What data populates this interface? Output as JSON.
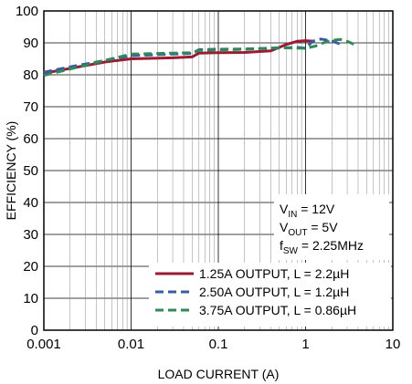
{
  "chart_data": {
    "type": "line",
    "xscale": "log",
    "xlim": [
      0.001,
      10
    ],
    "ylim": [
      0,
      100
    ],
    "xticks": [
      0.001,
      0.01,
      0.1,
      1,
      10
    ],
    "xtick_labels": [
      "0.001",
      "0.01",
      "0.1",
      "1",
      "10"
    ],
    "yticks": [
      0,
      10,
      20,
      30,
      40,
      50,
      60,
      70,
      80,
      90,
      100
    ],
    "ytick_labels": [
      "0",
      "10",
      "20",
      "30",
      "40",
      "50",
      "60",
      "70",
      "80",
      "90",
      "100"
    ],
    "xlabel": "LOAD CURRENT (A)",
    "ylabel": "EFFICIENCY (%)",
    "grid": true,
    "annotations": [
      {
        "main": "V",
        "sub": "IN",
        "rest": " = 12V"
      },
      {
        "main": "V",
        "sub": "OUT",
        "rest": " = 5V"
      },
      {
        "main": "f",
        "sub": "SW",
        "rest": " = 2.25MHz"
      }
    ],
    "legend_position": "bottom-right",
    "series": [
      {
        "name": "1.25A OUTPUT, L = 2.2µH",
        "color": "#9b1b30",
        "style": "solid",
        "x": [
          0.001,
          0.002,
          0.005,
          0.01,
          0.03,
          0.05,
          0.06,
          0.1,
          0.2,
          0.4,
          0.6,
          0.8,
          1.0,
          1.25
        ],
        "y": [
          80.5,
          82.0,
          84.0,
          85.0,
          85.3,
          85.6,
          86.8,
          86.9,
          87.0,
          87.5,
          89.5,
          90.5,
          90.7,
          90.5
        ]
      },
      {
        "name": "2.50A OUTPUT, L = 1.2µH",
        "color": "#3a5aa6",
        "style": "dash",
        "x": [
          0.001,
          0.002,
          0.005,
          0.01,
          0.03,
          0.05,
          0.06,
          0.1,
          0.2,
          0.5,
          0.8,
          1.0,
          1.2,
          1.5,
          2.0,
          2.5
        ],
        "y": [
          80.8,
          82.5,
          84.5,
          86.0,
          86.5,
          86.7,
          87.9,
          88.0,
          88.1,
          88.4,
          88.6,
          88.3,
          90.5,
          91.2,
          90.6,
          89.6
        ]
      },
      {
        "name": "3.75A OUTPUT, L = 0.86µH",
        "color": "#2e8b57",
        "style": "dash",
        "x": [
          0.001,
          0.002,
          0.005,
          0.01,
          0.03,
          0.05,
          0.06,
          0.1,
          0.2,
          0.5,
          1.0,
          1.3,
          1.6,
          2.0,
          2.5,
          3.0,
          3.75
        ],
        "y": [
          79.8,
          81.8,
          84.5,
          86.5,
          86.8,
          86.9,
          87.6,
          87.8,
          88.0,
          88.5,
          88.3,
          89.0,
          90.0,
          90.8,
          91.1,
          90.5,
          89.3
        ]
      }
    ]
  }
}
